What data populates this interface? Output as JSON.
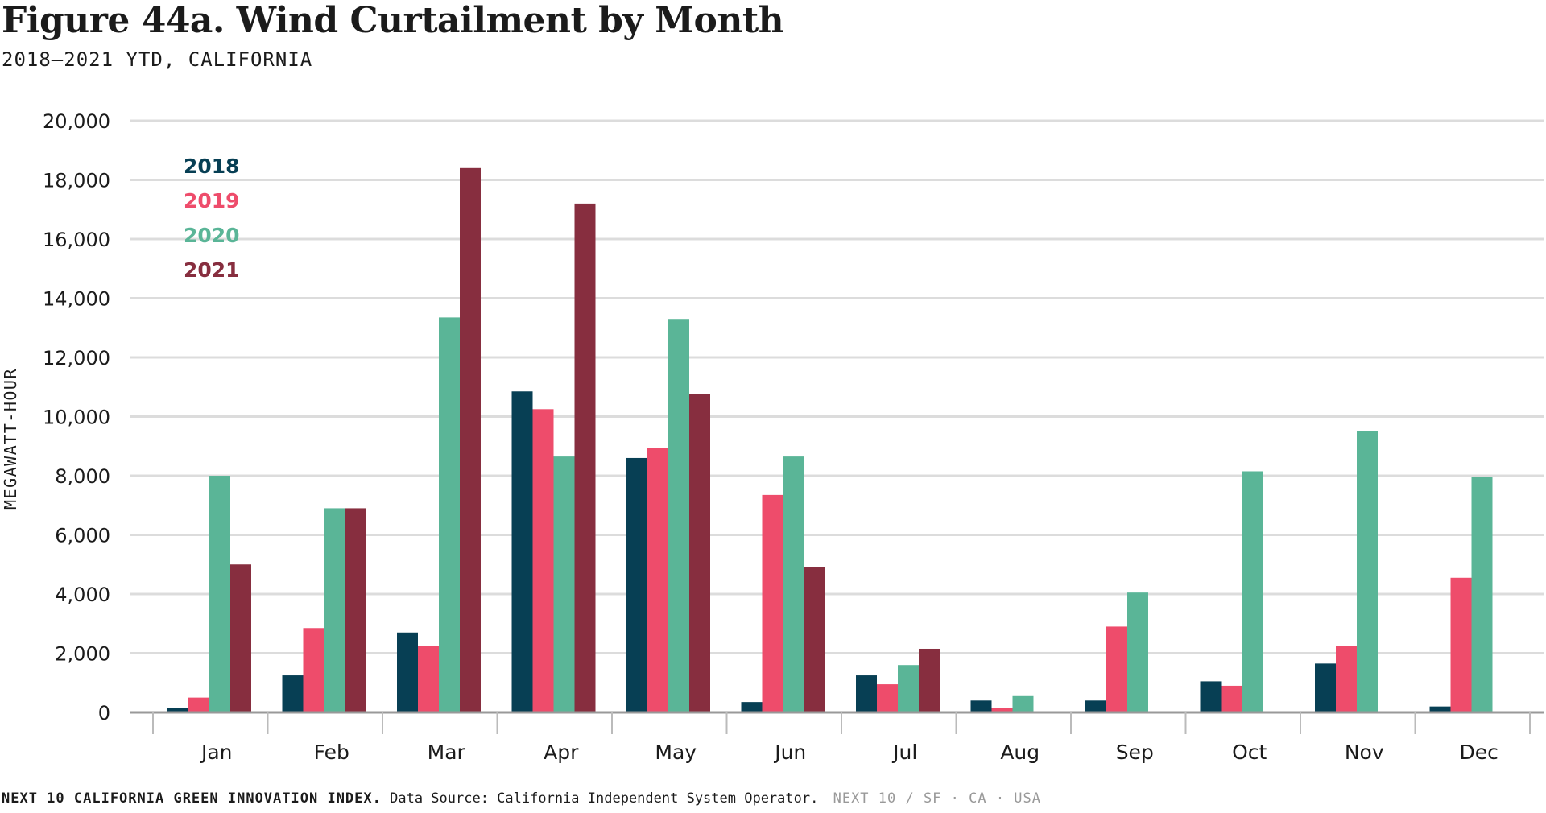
{
  "title": "Figure 44a. Wind Curtailment by Month",
  "subtitle": "2018–2021 YTD, CALIFORNIA",
  "footer": {
    "brand": "NEXT 10 CALIFORNIA GREEN INNOVATION INDEX.",
    "source": "Data Source: California Independent System Operator.",
    "tag": "NEXT 10 / SF · CA · USA"
  },
  "chart_data": {
    "type": "bar",
    "categories": [
      "Jan",
      "Feb",
      "Mar",
      "Apr",
      "May",
      "Jun",
      "Jul",
      "Aug",
      "Sep",
      "Oct",
      "Nov",
      "Dec"
    ],
    "series": [
      {
        "name": "2018",
        "color": "#073f54",
        "values": [
          150,
          1250,
          2700,
          10850,
          8600,
          350,
          1250,
          400,
          400,
          1050,
          1650,
          200
        ]
      },
      {
        "name": "2019",
        "color": "#ee4c6b",
        "values": [
          500,
          2850,
          2250,
          10250,
          8950,
          7350,
          950,
          150,
          2900,
          900,
          2250,
          4550
        ]
      },
      {
        "name": "2020",
        "color": "#5ab597",
        "values": [
          8000,
          6900,
          13350,
          8650,
          13300,
          8650,
          1600,
          550,
          4050,
          8150,
          9500,
          7950
        ]
      },
      {
        "name": "2021",
        "color": "#872e3f",
        "values": [
          5000,
          6900,
          18400,
          17200,
          10750,
          4900,
          2150,
          null,
          null,
          null,
          null,
          null
        ]
      }
    ],
    "ylabel": "MEGAWATT-HOUR",
    "ylim": [
      0,
      20000
    ],
    "yticks": [
      0,
      2000,
      4000,
      6000,
      8000,
      10000,
      12000,
      14000,
      16000,
      18000,
      20000
    ],
    "ytick_labels": [
      "0",
      "2,000",
      "4,000",
      "6,000",
      "8,000",
      "10,000",
      "12,000",
      "14,000",
      "16,000",
      "18,000",
      "20,000"
    ],
    "grid": true,
    "legend_position": "top-left"
  }
}
